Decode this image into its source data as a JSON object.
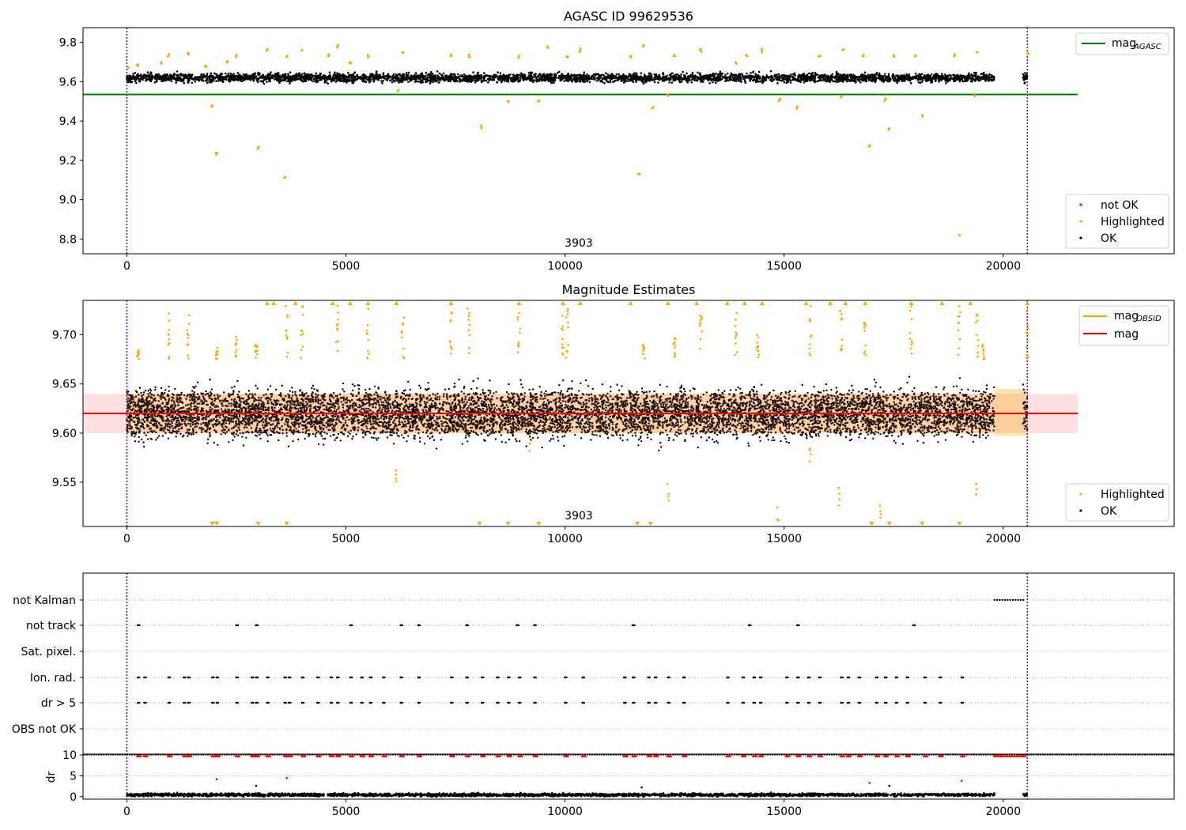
{
  "chart_data": [
    {
      "type": "scatter",
      "title": "AGASC ID 99629536",
      "xlabel": "",
      "ylabel": "",
      "xlim": [
        -1000,
        23900
      ],
      "ylim": [
        8.725,
        9.875
      ],
      "xticks": [
        0,
        5000,
        10000,
        15000,
        20000
      ],
      "yticks": [
        8.8,
        9.0,
        9.2,
        9.4,
        9.6,
        9.8
      ],
      "ytick_labels": [
        "8.8",
        "9.0",
        "9.2",
        "9.4",
        "9.6",
        "9.8"
      ],
      "annotation": "3903",
      "vlines": [
        0,
        20550
      ],
      "hline": {
        "name": "mag_AGASC",
        "y": 9.535,
        "x_range": [
          -1000,
          21700
        ]
      },
      "legend_lines": [
        {
          "label": "mag",
          "sub": "AGASC",
          "color": "#008000"
        }
      ],
      "legend_markers": [
        {
          "label": "not OK",
          "color": "#ff0000"
        },
        {
          "label": "Highlighted",
          "color": "#ffa500"
        },
        {
          "label": "OK",
          "color": "#000000"
        }
      ],
      "ok_band": {
        "y_center": 9.62,
        "spread": 0.022,
        "x_segments": [
          [
            0,
            19800
          ],
          [
            20450,
            20550
          ]
        ]
      },
      "highlighted_points": [
        [
          30,
          9.67
        ],
        [
          250,
          9.68
        ],
        [
          800,
          9.7
        ],
        [
          950,
          9.73
        ],
        [
          1400,
          9.74
        ],
        [
          1800,
          9.68
        ],
        [
          1950,
          9.48
        ],
        [
          2050,
          9.23
        ],
        [
          2300,
          9.7
        ],
        [
          2500,
          9.73
        ],
        [
          3000,
          9.26
        ],
        [
          3200,
          9.76
        ],
        [
          3600,
          9.11
        ],
        [
          3650,
          9.73
        ],
        [
          4000,
          9.76
        ],
        [
          4600,
          9.73
        ],
        [
          4800,
          9.78
        ],
        [
          5100,
          9.7
        ],
        [
          5500,
          9.73
        ],
        [
          6200,
          9.55
        ],
        [
          6300,
          9.75
        ],
        [
          7400,
          9.73
        ],
        [
          7800,
          9.73
        ],
        [
          8100,
          9.37
        ],
        [
          8700,
          9.5
        ],
        [
          8950,
          9.73
        ],
        [
          9400,
          9.5
        ],
        [
          9600,
          9.78
        ],
        [
          10050,
          9.73
        ],
        [
          10350,
          9.76
        ],
        [
          11500,
          9.73
        ],
        [
          11700,
          9.13
        ],
        [
          11800,
          9.78
        ],
        [
          12000,
          9.47
        ],
        [
          12350,
          9.53
        ],
        [
          12500,
          9.73
        ],
        [
          13100,
          9.76
        ],
        [
          13900,
          9.7
        ],
        [
          14150,
          9.73
        ],
        [
          14500,
          9.76
        ],
        [
          14900,
          9.51
        ],
        [
          15300,
          9.47
        ],
        [
          15800,
          9.73
        ],
        [
          16300,
          9.52
        ],
        [
          16350,
          9.76
        ],
        [
          16800,
          9.73
        ],
        [
          16950,
          9.27
        ],
        [
          17300,
          9.51
        ],
        [
          17400,
          9.36
        ],
        [
          17500,
          9.73
        ],
        [
          18000,
          9.73
        ],
        [
          18150,
          9.43
        ],
        [
          18900,
          9.73
        ],
        [
          19000,
          8.82
        ],
        [
          19350,
          9.53
        ],
        [
          19400,
          9.75
        ],
        [
          20550,
          9.74
        ]
      ]
    },
    {
      "type": "scatter",
      "title": "Magnitude Estimates",
      "xlabel": "",
      "ylabel": "",
      "xlim": [
        -1000,
        23900
      ],
      "ylim": [
        9.505,
        9.735
      ],
      "xticks": [
        0,
        5000,
        10000,
        15000,
        20000
      ],
      "yticks": [
        9.55,
        9.6,
        9.65,
        9.7
      ],
      "ytick_labels": [
        "9.55",
        "9.60",
        "9.65",
        "9.70"
      ],
      "annotation": "3903",
      "vlines": [
        0,
        20550
      ],
      "mag_line": {
        "name": "mag",
        "y": 9.62,
        "x_range": [
          -1000,
          21700
        ],
        "color": "#ff0000"
      },
      "mag_band": {
        "y_low": 9.6,
        "y_high": 9.64,
        "color": "rgba(255,0,0,0.12)"
      },
      "obsid_band": {
        "y_low": 9.6,
        "y_high": 9.64,
        "color": "rgba(255,165,0,0.25)"
      },
      "legend_lines": [
        {
          "label": "mag",
          "sub": "OBSID",
          "color": "#ffa500"
        },
        {
          "label": "mag",
          "sub": "",
          "color": "#ff0000"
        }
      ],
      "legend_markers": [
        {
          "label": "Highlighted",
          "color": "#ffa500"
        },
        {
          "label": "OK",
          "color": "#000000"
        }
      ],
      "ok_band": {
        "y_center": 9.62,
        "spread": 0.025,
        "x_segments": [
          [
            0,
            19800
          ],
          [
            20450,
            20550
          ]
        ]
      },
      "highlighted_spikes": [
        [
          250,
          9.69
        ],
        [
          950,
          9.73
        ],
        [
          1400,
          9.73
        ],
        [
          2050,
          9.69
        ],
        [
          2500,
          9.7
        ],
        [
          2950,
          9.69
        ],
        [
          3650,
          9.73
        ],
        [
          4000,
          9.73
        ],
        [
          4800,
          9.73
        ],
        [
          5500,
          9.73
        ],
        [
          6300,
          9.72
        ],
        [
          7400,
          9.73
        ],
        [
          7800,
          9.73
        ],
        [
          8950,
          9.73
        ],
        [
          9950,
          9.72
        ],
        [
          10050,
          9.73
        ],
        [
          11800,
          9.69
        ],
        [
          12500,
          9.7
        ],
        [
          13100,
          9.72
        ],
        [
          13900,
          9.73
        ],
        [
          14400,
          9.7
        ],
        [
          15600,
          9.73
        ],
        [
          16300,
          9.73
        ],
        [
          16850,
          9.73
        ],
        [
          17900,
          9.73
        ],
        [
          19000,
          9.73
        ],
        [
          19400,
          9.73
        ],
        [
          19550,
          9.69
        ],
        [
          20550,
          9.73
        ]
      ],
      "highlighted_low": [
        [
          6150,
          9.548
        ],
        [
          12350,
          9.53
        ],
        [
          15600,
          9.565
        ],
        [
          16250,
          9.525
        ],
        [
          19400,
          9.535
        ],
        [
          14850,
          9.51
        ],
        [
          17200,
          9.512
        ],
        [
          9200,
          9.58
        ]
      ],
      "down_triangles": [
        1950,
        2050,
        3000,
        3650,
        8050,
        8700,
        9400,
        11650,
        11950,
        17000,
        17400,
        18150,
        19000
      ],
      "up_triangles": [
        3200,
        3350,
        3850,
        4700,
        5100,
        5500,
        6150,
        7400,
        8950,
        9950,
        10350,
        11500,
        12350,
        13000,
        13700,
        14100,
        14500,
        15500,
        16050,
        16400,
        16850,
        17900,
        18600,
        19250,
        20550
      ]
    },
    {
      "type": "scatter",
      "title": "",
      "xlabel": "",
      "ylabel": "",
      "xlim": [
        -1000,
        23900
      ],
      "flag_rows": [
        "not Kalman",
        "not track",
        "Sat. pixel.",
        "Ion. rad.",
        "dr > 5",
        "OBS not OK"
      ],
      "flag_points": {
        "not Kalman": [
          [
            19800,
            20500
          ]
        ],
        "not track": [
          250,
          2500,
          2950,
          5100,
          6250,
          6650,
          7750,
          8900,
          9300,
          11550,
          14200,
          15300,
          17950
        ],
        "Sat. pixel.": [],
        "Ion. rad.": [
          250,
          400,
          950,
          1300,
          1400,
          1950,
          2050,
          2500,
          2850,
          2950,
          3200,
          3600,
          3700,
          4000,
          4350,
          4650,
          4800,
          5100,
          5350,
          5550,
          5850,
          6250,
          6650,
          7400,
          7750,
          8100,
          8450,
          8700,
          8950,
          9300,
          10000,
          10400,
          11350,
          11550,
          11900,
          12050,
          12350,
          12700,
          13700,
          14050,
          14300,
          14450,
          15050,
          15300,
          15550,
          15800,
          16300,
          16450,
          16700,
          17100,
          17300,
          17550,
          17800,
          18200,
          18550,
          19050
        ],
        "dr > 5": [
          250,
          400,
          950,
          1300,
          1400,
          1950,
          2050,
          2500,
          2850,
          2950,
          3200,
          3600,
          3700,
          4000,
          4350,
          4650,
          4800,
          5100,
          5350,
          5550,
          5850,
          6250,
          6650,
          7400,
          7750,
          8100,
          8450,
          8700,
          8950,
          9300,
          10000,
          10400,
          11350,
          11550,
          11900,
          12050,
          12350,
          12700,
          13700,
          14050,
          14300,
          14450,
          15050,
          15300,
          15550,
          15800,
          16300,
          16450,
          16700,
          17100,
          17300,
          17550,
          17800,
          18200,
          18550,
          19050
        ],
        "OBS not OK": []
      }
    },
    {
      "type": "scatter",
      "title": "",
      "xlabel": "",
      "ylabel": "dr",
      "xlim": [
        -1000,
        23900
      ],
      "ylim": [
        -0.6,
        10.2
      ],
      "xticks": [
        0,
        5000,
        10000,
        15000,
        20000
      ],
      "yticks": [
        0,
        5,
        10
      ],
      "ytick_labels": [
        "0",
        "5",
        "10"
      ],
      "ok_band": {
        "y_center": 0.45,
        "spread": 0.35,
        "x_segments": [
          [
            0,
            19800
          ],
          [
            20450,
            20550
          ]
        ]
      },
      "clipped_red": [
        250,
        400,
        950,
        1300,
        1400,
        1950,
        2050,
        2500,
        2850,
        2950,
        3200,
        3600,
        3700,
        4000,
        4350,
        4650,
        4800,
        5100,
        5350,
        5550,
        5850,
        6250,
        6650,
        7400,
        7750,
        8100,
        8450,
        8700,
        8950,
        9300,
        10000,
        10400,
        11350,
        11550,
        11900,
        12050,
        12350,
        12700,
        13700,
        14050,
        14300,
        14450,
        15050,
        15300,
        15550,
        15800,
        16300,
        16450,
        16700,
        17100,
        17300,
        17550,
        17800,
        18200,
        18550,
        19050
      ],
      "red_band": [
        19800,
        20500
      ],
      "red_points": [
        [
          2050,
          4.2
        ],
        [
          3650,
          4.5
        ],
        [
          16950,
          3.3
        ],
        [
          19050,
          3.8
        ]
      ],
      "black_points": [
        [
          2950,
          2.6
        ],
        [
          11750,
          2.2
        ],
        [
          17400,
          2.6
        ]
      ]
    }
  ]
}
